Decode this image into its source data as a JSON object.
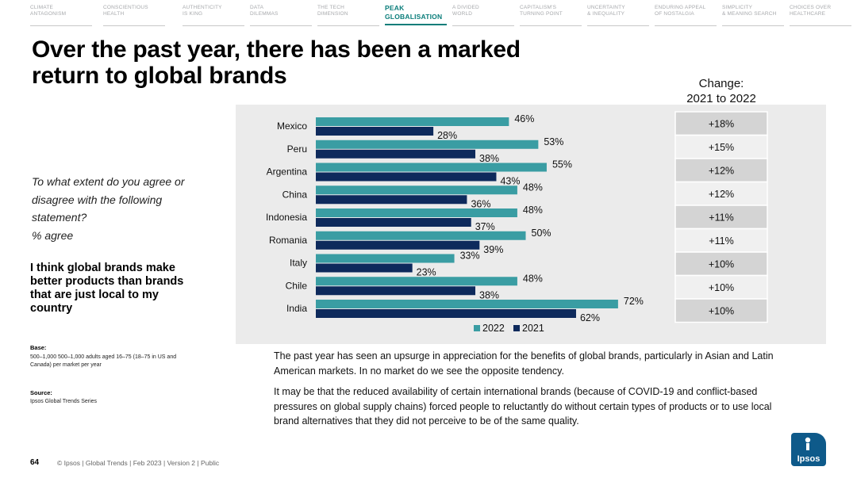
{
  "nav": [
    {
      "label": "CLIMATE\nANTAGONISM",
      "active": false
    },
    {
      "label": "CONSCIENTIOUS\nHEALTH",
      "active": false
    },
    {
      "label": "AUTHENTICITY\nIS KING",
      "active": false
    },
    {
      "label": "DATA\nDILEMMAS",
      "active": false
    },
    {
      "label": "THE TECH\nDIMENSION",
      "active": false
    },
    {
      "label": "PEAK\nGLOBALISATION",
      "active": true
    },
    {
      "label": "A DIVIDED\nWORLD",
      "active": false
    },
    {
      "label": "CAPITALISM'S\nTURNING POINT",
      "active": false
    },
    {
      "label": "UNCERTAINTY\n& INEQUALITY",
      "active": false
    },
    {
      "label": "ENDURING APPEAL\nOF NOSTALGIA",
      "active": false
    },
    {
      "label": "SIMPLICITY\n& MEANING SEARCH",
      "active": false
    },
    {
      "label": "CHOICES OVER\nHEALTHCARE",
      "active": false
    }
  ],
  "title": "Over the past year, there has been a marked return to global brands",
  "question": "To what extent do you agree or disagree with the following statement?\n% agree",
  "statement": "I think global brands make better products than brands that are just local to my country",
  "base": {
    "label": "Base:",
    "text": "500–1,000 500–1,000 adults aged 16–75 (18–75 in US and Canada) per market per year"
  },
  "source": {
    "label": "Source:",
    "text": "Ipsos Global Trends Series"
  },
  "footer": {
    "page": "64",
    "text": "© Ipsos | Global Trends | Feb 2023 | Version 2 | Public"
  },
  "change_header": "Change:\n2021 to 2022",
  "description": [
    "The past year has seen an upsurge in appreciation for the benefits of global brands, particularly in Asian and Latin American markets. In no market do we see the opposite tendency.",
    "It may be that the reduced availability of certain international brands (because of COVID-19 and conflict-based pressures on global supply chains) forced people to reluctantly do without certain types of products or to use local brand alternatives that they did not perceive to be of the same quality."
  ],
  "logo_text": "Ipsos",
  "colors": {
    "series_2022": "#3a9da3",
    "series_2021": "#0e2a5c",
    "accent": "#0a7d7a",
    "logo": "#0e5a8a"
  },
  "chart_data": {
    "type": "bar",
    "orientation": "horizontal",
    "categories": [
      "Mexico",
      "Peru",
      "Argentina",
      "China",
      "Indonesia",
      "Romania",
      "Italy",
      "Chile",
      "India"
    ],
    "series": [
      {
        "name": "2022",
        "values": [
          46,
          53,
          55,
          48,
          48,
          50,
          33,
          48,
          72
        ],
        "color": "#3a9da3"
      },
      {
        "name": "2021",
        "values": [
          28,
          38,
          43,
          36,
          37,
          39,
          23,
          38,
          62
        ],
        "color": "#0e2a5c"
      }
    ],
    "value_labels": {
      "2022": [
        "46%",
        "53%",
        "55%",
        "48%",
        "48%",
        "50%",
        "33%",
        "48%",
        "72%"
      ],
      "2021": [
        "28%",
        "38%",
        "43%",
        "36%",
        "37%",
        "39%",
        "23%",
        "38%",
        "62%"
      ]
    },
    "change": [
      "+18%",
      "+15%",
      "+12%",
      "+12%",
      "+11%",
      "+11%",
      "+10%",
      "+10%",
      "+10%"
    ],
    "xlim": [
      0,
      100
    ],
    "legend_position": "bottom",
    "grid": false
  }
}
